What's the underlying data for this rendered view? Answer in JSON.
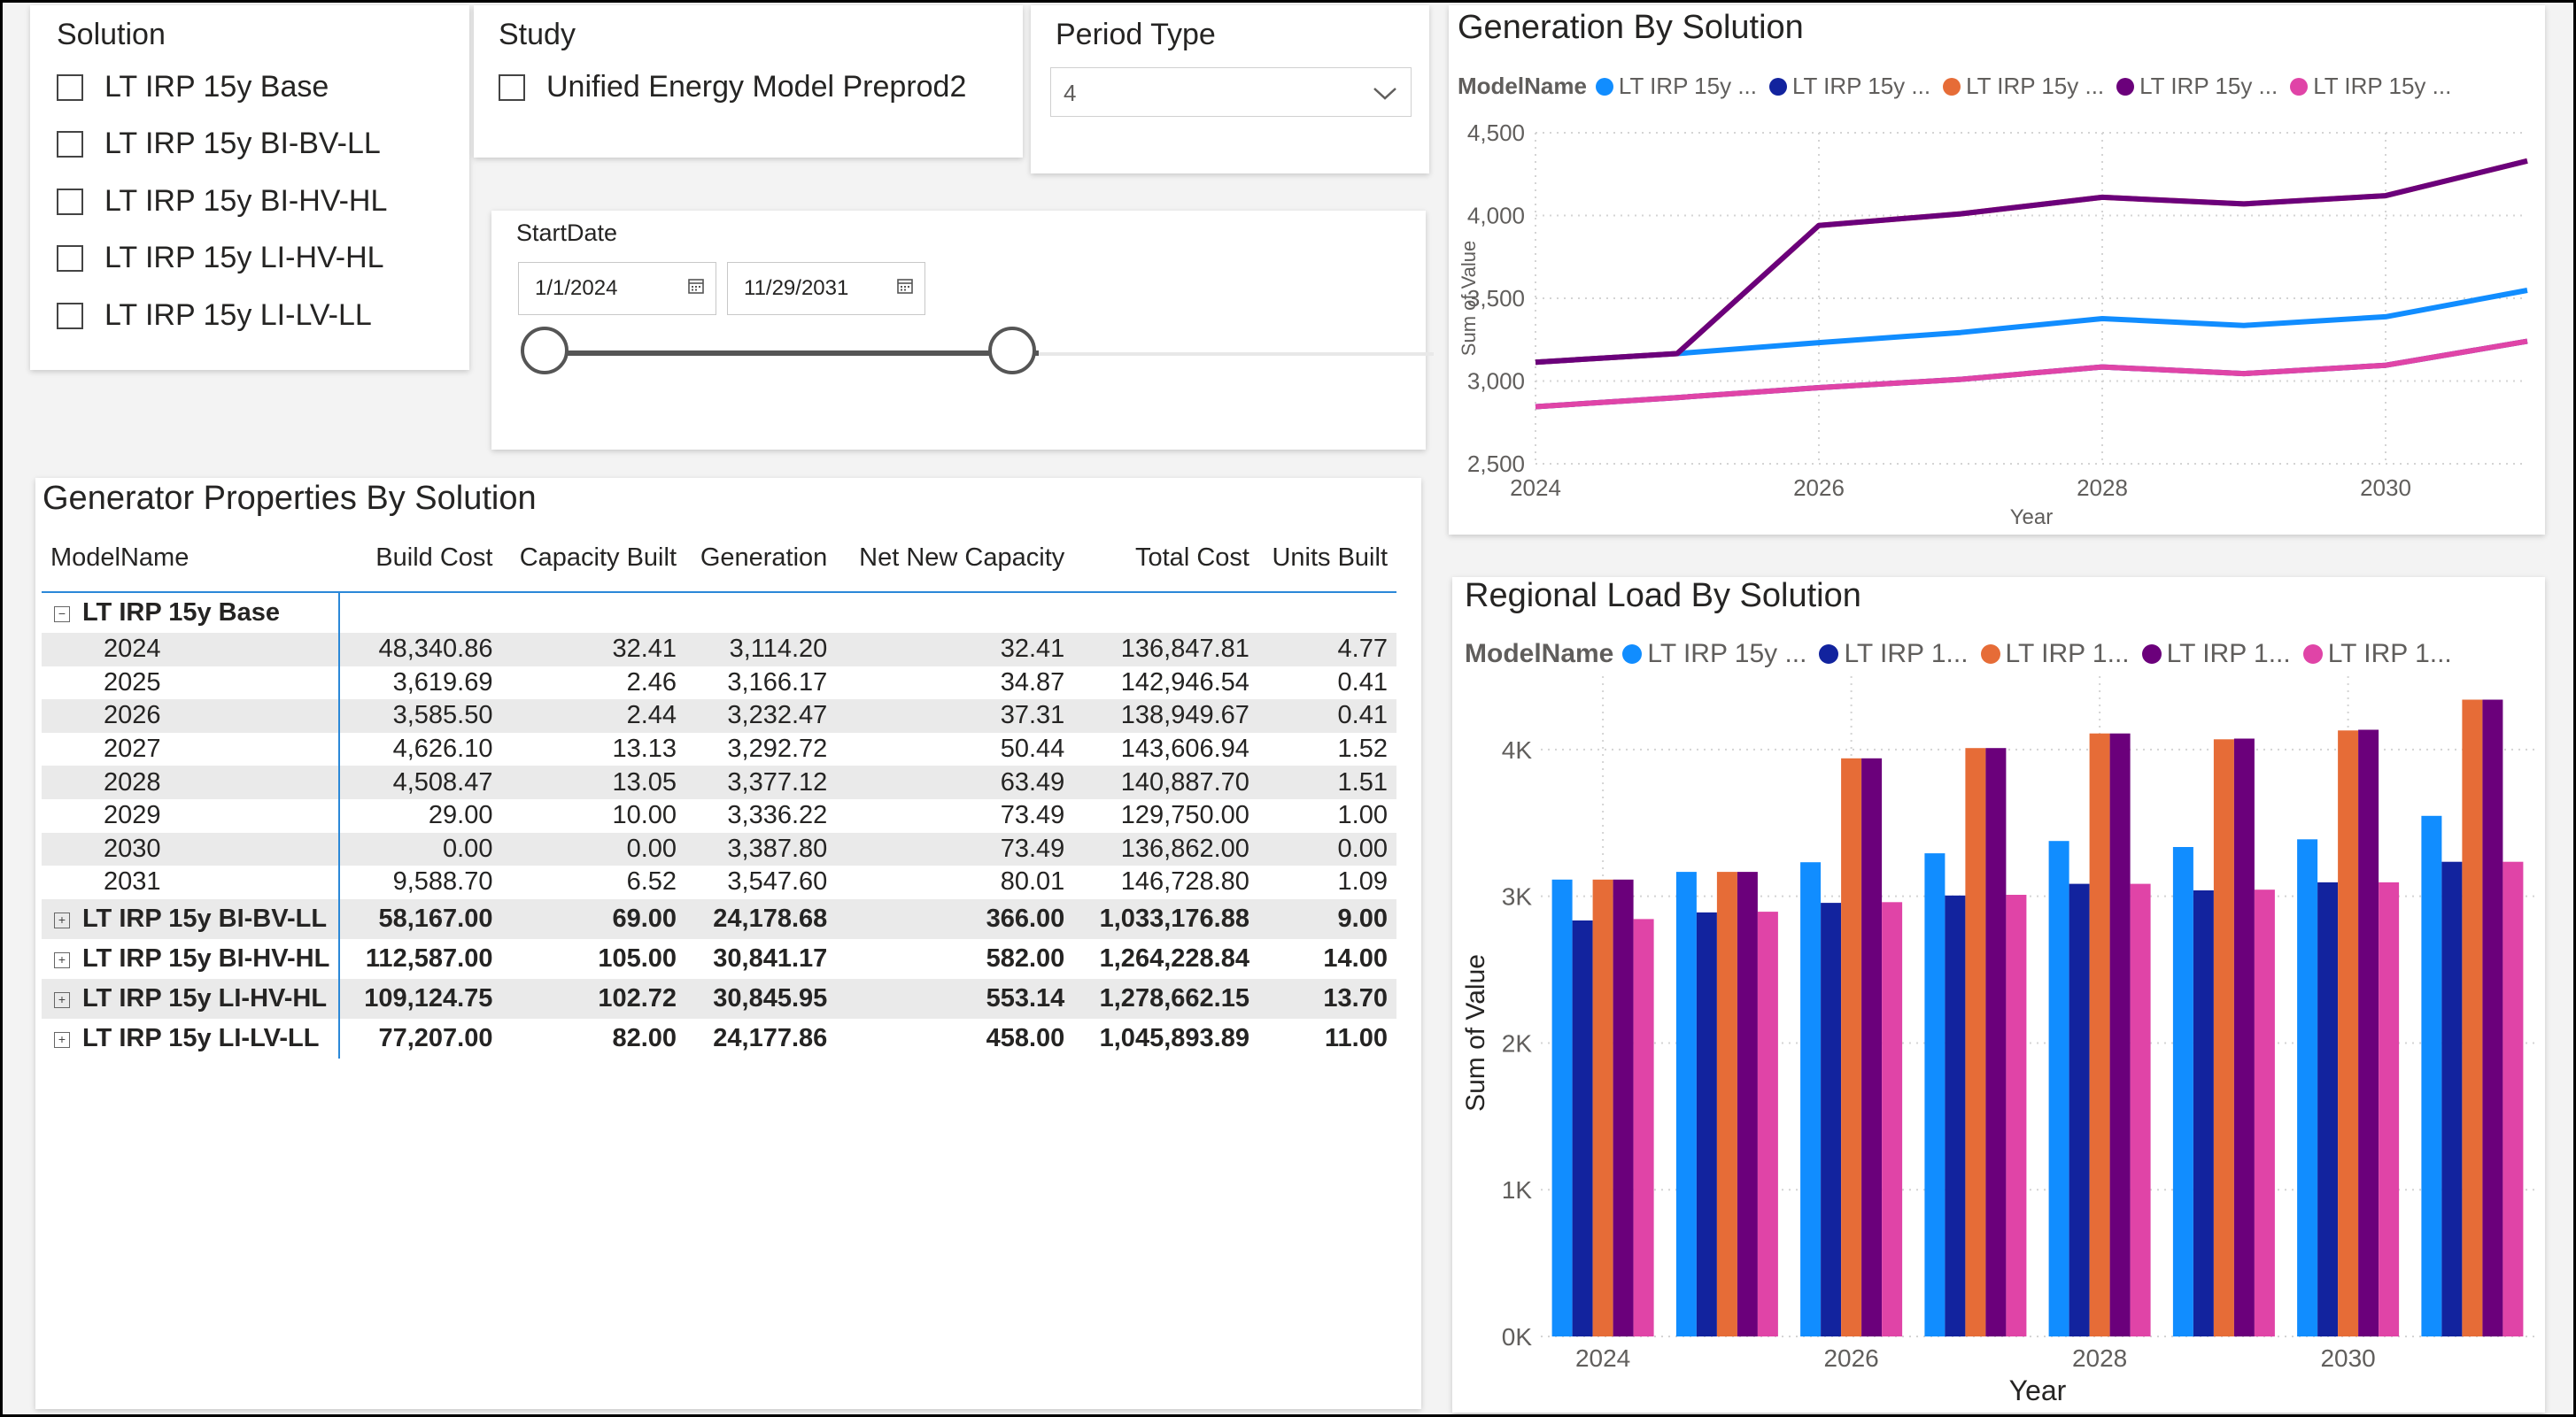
{
  "colors": {
    "series": [
      "#118dff",
      "#12239e",
      "#e66c37",
      "#6b007b",
      "#e044a7"
    ],
    "accent": "#2b88d8",
    "slider": "#555555"
  },
  "solution_slicer": {
    "title": "Solution",
    "items": [
      "LT IRP 15y Base",
      "LT IRP 15y BI-BV-LL",
      "LT IRP 15y BI-HV-HL",
      "LT IRP 15y LI-HV-HL",
      "LT IRP 15y LI-LV-LL"
    ]
  },
  "study_slicer": {
    "title": "Study",
    "items": [
      "Unified Energy Model Preprod2"
    ]
  },
  "period_slicer": {
    "title": "Period Type",
    "selected": "4",
    "icon": "chevron-down-icon"
  },
  "date_slicer": {
    "title": "StartDate",
    "start": "1/1/2024",
    "end": "11/29/2031",
    "range_selected": [
      0,
      0.555
    ]
  },
  "matrix": {
    "title": "Generator Properties By Solution",
    "columns": [
      "ModelName",
      "Build Cost",
      "Capacity Built",
      "Generation",
      "Net New Capacity",
      "Total Cost",
      "Units Built"
    ],
    "expanded": {
      "name": "LT IRP 15y Base",
      "rows": [
        [
          "2024",
          "48,340.86",
          "32.41",
          "3,114.20",
          "32.41",
          "136,847.81",
          "4.77"
        ],
        [
          "2025",
          "3,619.69",
          "2.46",
          "3,166.17",
          "34.87",
          "142,946.54",
          "0.41"
        ],
        [
          "2026",
          "3,585.50",
          "2.44",
          "3,232.47",
          "37.31",
          "138,949.67",
          "0.41"
        ],
        [
          "2027",
          "4,626.10",
          "13.13",
          "3,292.72",
          "50.44",
          "143,606.94",
          "1.52"
        ],
        [
          "2028",
          "4,508.47",
          "13.05",
          "3,377.12",
          "63.49",
          "140,887.70",
          "1.51"
        ],
        [
          "2029",
          "29.00",
          "10.00",
          "3,336.22",
          "73.49",
          "129,750.00",
          "1.00"
        ],
        [
          "2030",
          "0.00",
          "0.00",
          "3,387.80",
          "73.49",
          "136,862.00",
          "0.00"
        ],
        [
          "2031",
          "9,588.70",
          "6.52",
          "3,547.60",
          "80.01",
          "146,728.80",
          "1.09"
        ]
      ]
    },
    "collapsed": [
      [
        "LT IRP 15y BI-BV-LL",
        "58,167.00",
        "69.00",
        "24,178.68",
        "366.00",
        "1,033,176.88",
        "9.00"
      ],
      [
        "LT IRP 15y BI-HV-HL",
        "112,587.00",
        "105.00",
        "30,841.17",
        "582.00",
        "1,264,228.84",
        "14.00"
      ],
      [
        "LT IRP 15y LI-HV-HL",
        "109,124.75",
        "102.72",
        "30,845.95",
        "553.14",
        "1,278,662.15",
        "13.70"
      ],
      [
        "LT IRP 15y LI-LV-LL",
        "77,207.00",
        "82.00",
        "24,177.86",
        "458.00",
        "1,045,893.89",
        "11.00"
      ]
    ]
  },
  "chart_data": [
    {
      "type": "line",
      "title": "Generation By Solution",
      "legend_title": "ModelName",
      "legend_labels": [
        "LT IRP 15y ...",
        "LT IRP 15y ...",
        "LT IRP 15y ...",
        "LT IRP 15y ...",
        "LT IRP 15y ..."
      ],
      "xlabel": "Year",
      "ylabel": "Sum of Value",
      "x": [
        2024,
        2025,
        2026,
        2027,
        2028,
        2029,
        2030,
        2031
      ],
      "xticks": [
        "2024",
        "2026",
        "2028",
        "2030"
      ],
      "ylim": [
        2500,
        4500
      ],
      "yticks": [
        "2,500",
        "3,000",
        "3,500",
        "4,000",
        "4,500"
      ],
      "grid": true,
      "legend_position": "top-left",
      "series": [
        {
          "values": [
            3114,
            3166,
            3232,
            3293,
            3377,
            3336,
            3388,
            3548
          ]
        },
        {
          "values": [
            2845,
            2900,
            2960,
            3010,
            3085,
            3045,
            3095,
            3240
          ]
        },
        {
          "values": [
            3114,
            3166,
            3940,
            4010,
            4110,
            4070,
            4120,
            4330
          ]
        },
        {
          "values": [
            3114,
            3166,
            3940,
            4010,
            4110,
            4070,
            4120,
            4330
          ]
        },
        {
          "values": [
            2845,
            2900,
            2960,
            3010,
            3085,
            3045,
            3095,
            3240
          ]
        }
      ]
    },
    {
      "type": "bar",
      "title": "Regional Load By Solution",
      "legend_title": "ModelName",
      "legend_labels": [
        "LT IRP 15y ...",
        "LT IRP 1...",
        "LT IRP 1...",
        "LT IRP 1...",
        "LT IRP 1..."
      ],
      "xlabel": "Year",
      "ylabel": "Sum of Value",
      "categories": [
        2024,
        2025,
        2026,
        2027,
        2028,
        2029,
        2030,
        2031
      ],
      "xticks": [
        "2024",
        "2026",
        "2028",
        "2030"
      ],
      "ylim": [
        0,
        4500
      ],
      "yticks": [
        "0K",
        "1K",
        "2K",
        "3K",
        "4K"
      ],
      "grid": true,
      "legend_position": "top-left",
      "series": [
        {
          "values": [
            3114,
            3166,
            3232,
            3293,
            3377,
            3336,
            3388,
            3548
          ]
        },
        {
          "values": [
            2835,
            2890,
            2955,
            3005,
            3085,
            3040,
            3095,
            3235
          ]
        },
        {
          "values": [
            3114,
            3166,
            3940,
            4010,
            4110,
            4070,
            4130,
            4340
          ]
        },
        {
          "values": [
            3114,
            3166,
            3940,
            4010,
            4110,
            4075,
            4135,
            4340
          ]
        },
        {
          "values": [
            2845,
            2895,
            2960,
            3010,
            3085,
            3045,
            3095,
            3235
          ]
        }
      ]
    }
  ]
}
